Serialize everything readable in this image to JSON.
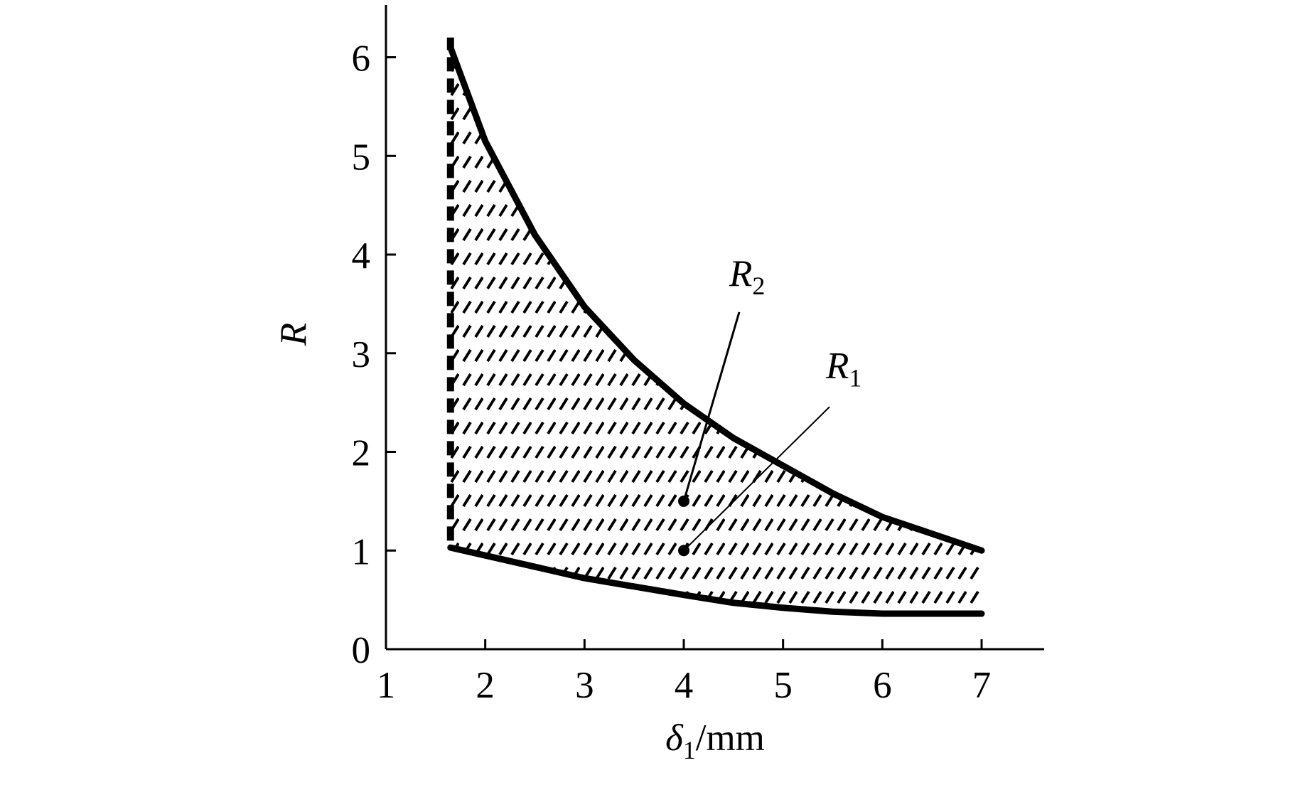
{
  "chart_data": {
    "type": "line",
    "xlabel": {
      "symbol": "δ",
      "subscript": "1",
      "unit": "/mm"
    },
    "ylabel": "R",
    "xlim": [
      1,
      7.63
    ],
    "ylim": [
      0,
      6.53
    ],
    "xticks": [
      1,
      2,
      3,
      4,
      5,
      6,
      7
    ],
    "yticks": [
      0,
      1,
      2,
      3,
      4,
      5,
      6
    ],
    "color": "#000000",
    "series": [
      {
        "style": "solid",
        "x": [
          1.65,
          2,
          2.5,
          3,
          3.5,
          4,
          4.5,
          5,
          5.5,
          6,
          6.5,
          7
        ],
        "values": [
          6.1,
          5.15,
          4.2,
          3.47,
          2.93,
          2.49,
          2.14,
          1.86,
          1.58,
          1.34,
          1.17,
          1.0
        ]
      },
      {
        "style": "solid",
        "x": [
          1.65,
          2,
          3,
          4,
          4.5,
          5,
          5.5,
          6,
          7
        ],
        "values": [
          1.03,
          0.95,
          0.72,
          0.55,
          0.47,
          0.42,
          0.38,
          0.36,
          0.36
        ]
      },
      {
        "style": "dashed",
        "x": [
          1.65,
          1.65
        ],
        "values": [
          1.1,
          6.2
        ]
      }
    ],
    "annotations": [
      {
        "symbol": "R",
        "subscript": "2",
        "x": 4,
        "y": 1.5
      },
      {
        "symbol": "R",
        "subscript": "1",
        "x": 4,
        "y": 1.0
      }
    ]
  }
}
